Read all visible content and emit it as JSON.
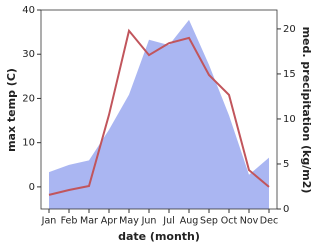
{
  "chart_data": {
    "type": "line",
    "x_label": "date (month)",
    "y_label": "max temp (C)",
    "y2_label": "med. precipitation (kg/m2)",
    "categories": [
      "Jan",
      "Feb",
      "Mar",
      "Apr",
      "May",
      "Jun",
      "Jul",
      "Aug",
      "Sep",
      "Oct",
      "Nov",
      "Dec"
    ],
    "series": [
      {
        "name": "med. precipitation",
        "axis": "y2",
        "kind": "area",
        "color": "#aab6f2",
        "values": [
          4.1,
          4.9,
          5.4,
          8.8,
          12.7,
          18.8,
          18.2,
          21,
          16,
          10.4,
          3.8,
          5.7
        ]
      },
      {
        "name": "max temp",
        "axis": "y",
        "kind": "line",
        "color": "#c1555c",
        "values": [
          -1.8,
          -0.7,
          0.2,
          16.3,
          35.3,
          29.8,
          32.5,
          33.7,
          25.3,
          20.8,
          3.8,
          0
        ]
      }
    ],
    "ylim": [
      -5,
      40
    ],
    "yticks": [
      0,
      10,
      20,
      30,
      40
    ],
    "y2lim": [
      0,
      22.1
    ],
    "y2ticks": [
      0,
      5,
      10,
      15,
      20
    ]
  }
}
